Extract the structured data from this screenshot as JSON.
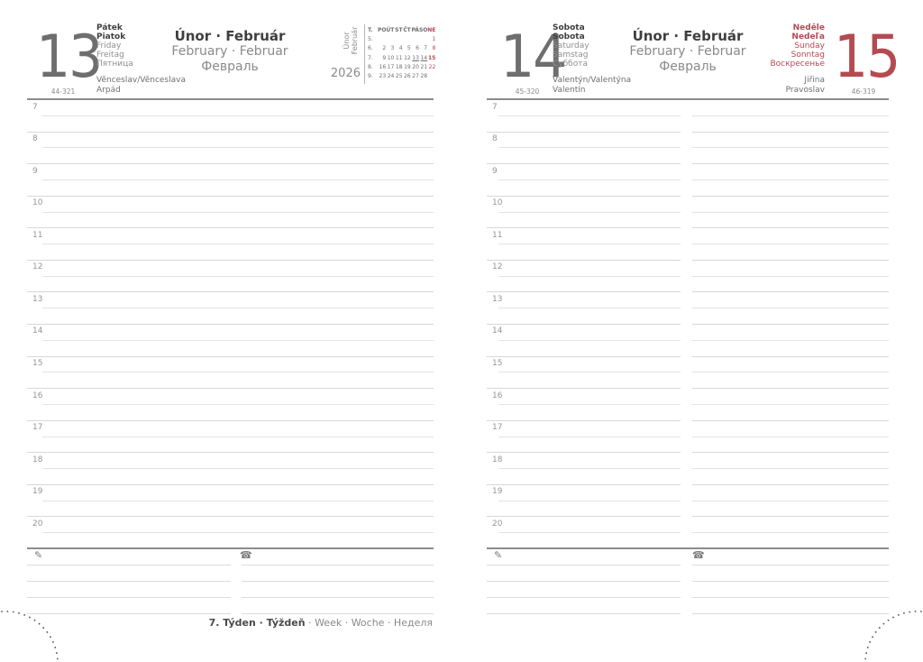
{
  "month": {
    "title_cs_sk": "Únor · Február",
    "title_en_de": "February · Februar",
    "title_ru": "Февраль"
  },
  "year": "2026",
  "hours": [
    "7",
    "8",
    "9",
    "10",
    "11",
    "12",
    "13",
    "14",
    "15",
    "16",
    "17",
    "18",
    "19",
    "20"
  ],
  "left_page": {
    "day_number": "13",
    "day_names": [
      "Pátek",
      "Piatok",
      "Friday",
      "Freitag",
      "Пятница"
    ],
    "counter": "44-321",
    "name_days": [
      "Věnceslav/Věnceslava",
      "Arpád"
    ]
  },
  "right_page": {
    "saturday": {
      "day_number": "14",
      "day_names": [
        "Sobota",
        "Sobota",
        "Saturday",
        "Samstag",
        "Суббота"
      ],
      "counter": "45-320",
      "name_days": [
        "Valentýn/Valentýna",
        "Valentín"
      ]
    },
    "sunday": {
      "day_number": "15",
      "day_names": [
        "Neděle",
        "Nedeľa",
        "Sunday",
        "Sonntag",
        "Воскресенье"
      ],
      "counter": "46-319",
      "name_days": [
        "Jiřina",
        "Pravoslav"
      ]
    }
  },
  "mini_calendar": {
    "rotated_label_line1": "Únor",
    "rotated_label_line2": "Február",
    "year": "2026",
    "header": [
      "T.",
      "PO",
      "ÚT",
      "ST",
      "ČT",
      "PÁ",
      "SO",
      "NE"
    ],
    "weeks": [
      {
        "week": "5.",
        "days": [
          "",
          "",
          "",
          "",
          "",
          "",
          "1"
        ]
      },
      {
        "week": "6.",
        "days": [
          "2",
          "3",
          "4",
          "5",
          "6",
          "7",
          "8"
        ]
      },
      {
        "week": "7.",
        "days": [
          "9",
          "10",
          "11",
          "12",
          "13",
          "14",
          "15"
        ]
      },
      {
        "week": "8.",
        "days": [
          "16",
          "17",
          "18",
          "19",
          "20",
          "21",
          "22"
        ]
      },
      {
        "week": "9.",
        "days": [
          "23",
          "24",
          "25",
          "26",
          "27",
          "28",
          ""
        ]
      }
    ],
    "red_days": [
      "1",
      "8",
      "15",
      "22"
    ],
    "bold_days": [
      "15"
    ],
    "underlined_days": [
      "13",
      "14"
    ]
  },
  "footer": {
    "week_bold": "7. Týden · Týždeň",
    "week_rest": " · Week · Woche · Неделя"
  },
  "icons": {
    "pencil": "✎",
    "phone": "☎"
  },
  "colors": {
    "accent_red": "#b44a52",
    "number_gray": "#6e6e6e",
    "line_gray": "#d8d8d8",
    "separator_gray": "#8c8c8c"
  }
}
